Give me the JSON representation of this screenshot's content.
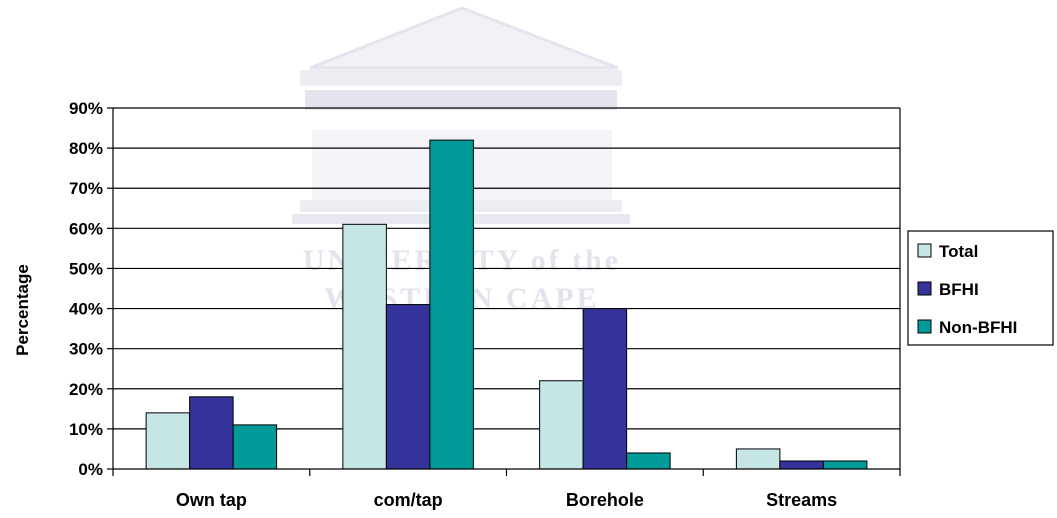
{
  "chart_data": {
    "type": "bar",
    "categories": [
      "Own tap",
      "com/tap",
      "Borehole",
      "Streams"
    ],
    "series": [
      {
        "name": "Total",
        "color": "#c6e6e6",
        "values": [
          14,
          61,
          22,
          5
        ]
      },
      {
        "name": "BFHI",
        "color": "#33339a",
        "values": [
          18,
          41,
          40,
          2
        ]
      },
      {
        "name": "Non-BFHI",
        "color": "#009a99",
        "values": [
          11,
          82,
          4,
          2
        ]
      }
    ],
    "title": "",
    "xlabel": "",
    "ylabel": "Percentage",
    "ylim": [
      0,
      90
    ],
    "yticks": [
      "0%",
      "10%",
      "20%",
      "30%",
      "40%",
      "50%",
      "60%",
      "70%",
      "80%",
      "90%"
    ],
    "grid": true,
    "legend_position": "right"
  },
  "watermark": {
    "line1": "UNIVERSITY of the",
    "line2": "WESTERN CAPE"
  }
}
